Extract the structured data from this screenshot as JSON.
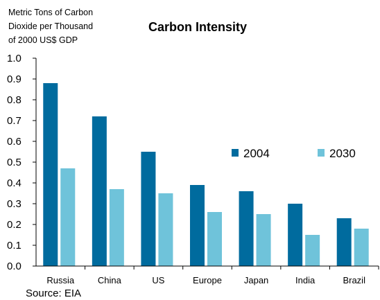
{
  "chart_data": {
    "type": "bar",
    "title": "Carbon Intensity",
    "ylabel_lines": [
      "Metric Tons of Carbon",
      "Dioxide per Thousand",
      "of 2000 US$ GDP"
    ],
    "xlabel": "",
    "categories": [
      "Russia",
      "China",
      "US",
      "Europe",
      "Japan",
      "India",
      "Brazil"
    ],
    "series": [
      {
        "name": "2004",
        "color": "#006b9e",
        "values": [
          0.88,
          0.72,
          0.55,
          0.39,
          0.36,
          0.3,
          0.23
        ]
      },
      {
        "name": "2030",
        "color": "#6fc3da",
        "values": [
          0.47,
          0.37,
          0.35,
          0.26,
          0.25,
          0.15,
          0.18
        ]
      }
    ],
    "ylim": [
      0,
      1.0
    ],
    "yticks": [
      "0.0",
      "0.1",
      "0.2",
      "0.3",
      "0.4",
      "0.5",
      "0.6",
      "0.7",
      "0.8",
      "0.9",
      "1.0"
    ],
    "grid": false,
    "legend_position": "right-middle",
    "source": "Source: EIA"
  }
}
